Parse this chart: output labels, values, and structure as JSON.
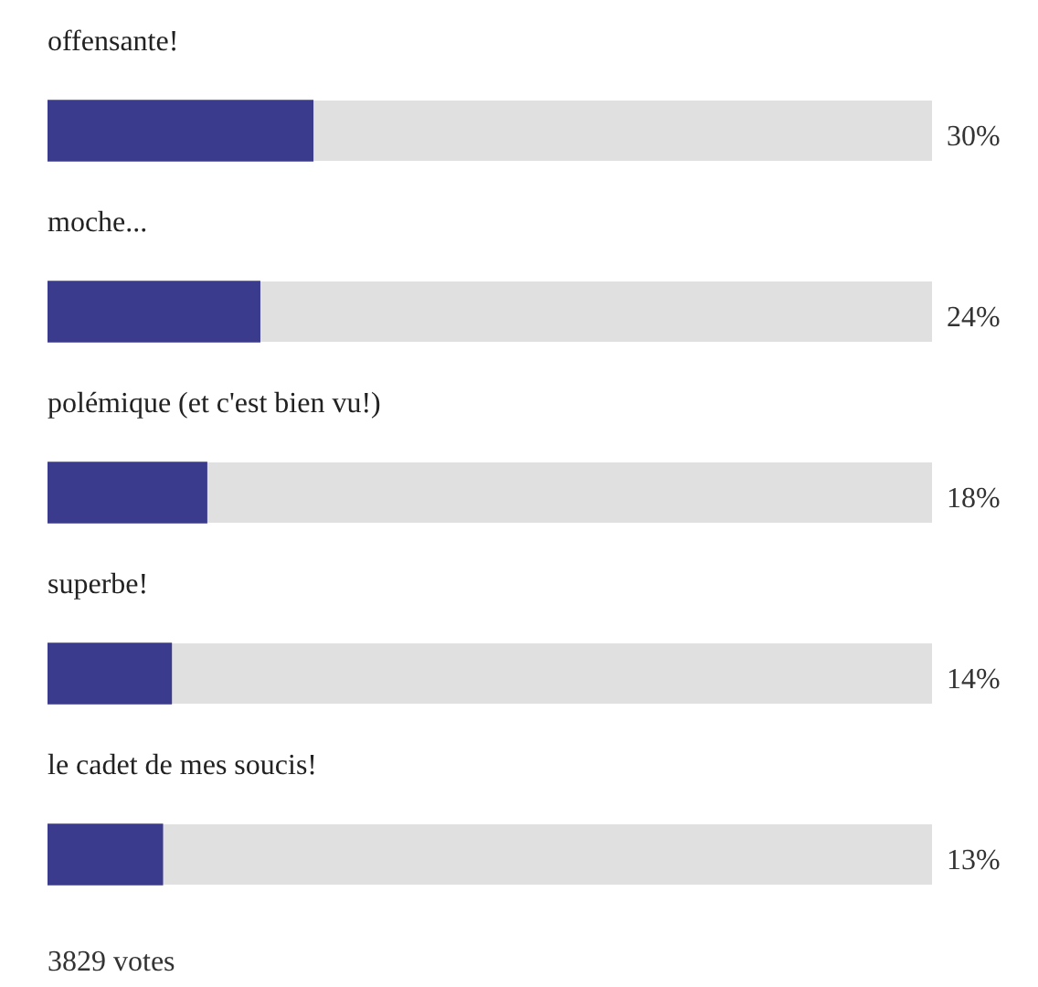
{
  "chart_data": {
    "type": "bar",
    "orientation": "horizontal",
    "categories": [
      "offensante!",
      "moche...",
      "polémique (et c'est bien vu!)",
      "superbe!",
      "le cadet de mes soucis!"
    ],
    "values": [
      30,
      24,
      18,
      14,
      13
    ],
    "value_labels": [
      "30%",
      "24%",
      "18%",
      "14%",
      "13%"
    ],
    "color": "#3b3b8e",
    "xlim": [
      0,
      100
    ],
    "tick_labels": "y",
    "annotations": [
      "3829 votes"
    ]
  }
}
